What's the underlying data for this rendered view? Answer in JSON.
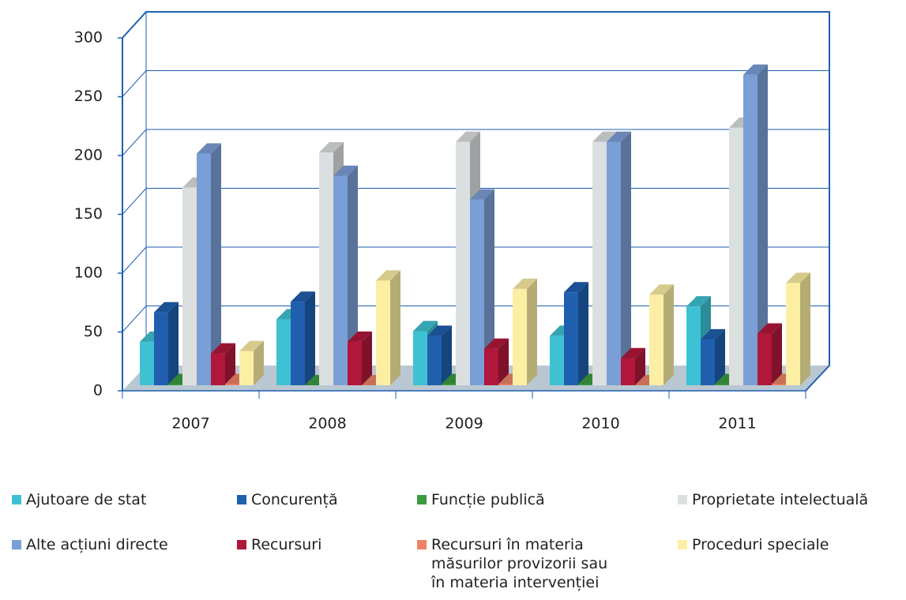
{
  "chart_data": {
    "type": "bar3d",
    "categories": [
      "2007",
      "2008",
      "2009",
      "2010",
      "2011"
    ],
    "series": [
      {
        "name": "Ajutoare de stat",
        "color": "#3ec1d3",
        "values": [
          37,
          56,
          46,
          42,
          67
        ]
      },
      {
        "name": "Concurență",
        "color": "#1f5fae",
        "values": [
          62,
          71,
          42,
          79,
          39
        ]
      },
      {
        "name": "Funcție publică",
        "color": "#3a9b3e",
        "values": [
          1,
          0,
          1,
          1,
          1
        ]
      },
      {
        "name": "Proprietate intelectuală",
        "color": "#dcdfe0",
        "values": [
          168,
          198,
          207,
          207,
          219
        ]
      },
      {
        "name": "Alte acțiuni directe",
        "color": "#7a9fd6",
        "values": [
          197,
          178,
          158,
          207,
          264
        ]
      },
      {
        "name": "Recursuri",
        "color": "#b0173a",
        "values": [
          27,
          37,
          31,
          23,
          44
        ]
      },
      {
        "name": "Recursuri în materia măsurilor provizorii sau în materia intervenției",
        "color": "#ee8266",
        "values": [
          1,
          0,
          1,
          0,
          1
        ]
      },
      {
        "name": "Proceduri speciale",
        "color": "#fcefa3",
        "values": [
          29,
          89,
          82,
          77,
          87
        ]
      }
    ],
    "ylim": [
      0,
      300
    ],
    "yticks": [
      0,
      50,
      100,
      150,
      200,
      250,
      300
    ],
    "grid": true,
    "legend": "bottom"
  }
}
